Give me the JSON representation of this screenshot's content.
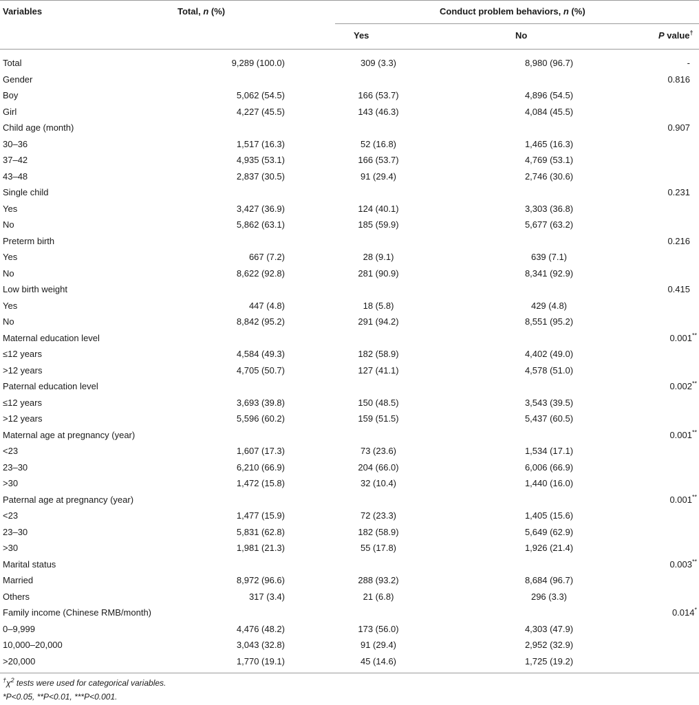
{
  "header": {
    "variables": "Variables",
    "total_pre": "Total, ",
    "total_n": "n",
    "total_post": " (%)",
    "cpb_pre": "Conduct problem behaviors, ",
    "cpb_n": "n",
    "cpb_post": " (%)",
    "yes": "Yes",
    "no": "No",
    "p_pre": "P",
    "p_post": " value",
    "p_mark": "†"
  },
  "rows": [
    {
      "label": "Total",
      "total": "9,289 (100.0)",
      "yes": "309 (3.3)",
      "no": "8,980 (96.7)",
      "p": "-",
      "p_mark": ""
    },
    {
      "label": "Gender",
      "total": "",
      "yes": "",
      "no": "",
      "p": "0.816",
      "p_mark": ""
    },
    {
      "label": "Boy",
      "total": "5,062 (54.5)",
      "yes": "166 (53.7)",
      "no": "4,896 (54.5)",
      "p": "",
      "p_mark": ""
    },
    {
      "label": "Girl",
      "total": "4,227 (45.5)",
      "yes": "143 (46.3)",
      "no": "4,084 (45.5)",
      "p": "",
      "p_mark": ""
    },
    {
      "label": "Child age (month)",
      "total": "",
      "yes": "",
      "no": "",
      "p": "0.907",
      "p_mark": ""
    },
    {
      "label": "30–36",
      "total": "1,517 (16.3)",
      "yes": "52 (16.8)",
      "no": "1,465 (16.3)",
      "p": "",
      "p_mark": ""
    },
    {
      "label": "37–42",
      "total": "4,935 (53.1)",
      "yes": "166 (53.7)",
      "no": "4,769 (53.1)",
      "p": "",
      "p_mark": ""
    },
    {
      "label": "43–48",
      "total": "2,837 (30.5)",
      "yes": "91 (29.4)",
      "no": "2,746 (30.6)",
      "p": "",
      "p_mark": ""
    },
    {
      "label": "Single child",
      "total": "",
      "yes": "",
      "no": "",
      "p": "0.231",
      "p_mark": ""
    },
    {
      "label": "Yes",
      "total": "3,427 (36.9)",
      "yes": "124 (40.1)",
      "no": "3,303 (36.8)",
      "p": "",
      "p_mark": ""
    },
    {
      "label": "No",
      "total": "5,862 (63.1)",
      "yes": "185 (59.9)",
      "no": "5,677 (63.2)",
      "p": "",
      "p_mark": ""
    },
    {
      "label": "Preterm birth",
      "total": "",
      "yes": "",
      "no": "",
      "p": "0.216",
      "p_mark": ""
    },
    {
      "label": "Yes",
      "total": "667 (7.2)",
      "yes": "28 (9.1)",
      "no": "639 (7.1)",
      "p": "",
      "p_mark": ""
    },
    {
      "label": "No",
      "total": "8,622 (92.8)",
      "yes": "281 (90.9)",
      "no": "8,341 (92.9)",
      "p": "",
      "p_mark": ""
    },
    {
      "label": "Low birth weight",
      "total": "",
      "yes": "",
      "no": "",
      "p": "0.415",
      "p_mark": ""
    },
    {
      "label": "Yes",
      "total": "447 (4.8)",
      "yes": "18 (5.8)",
      "no": "429 (4.8)",
      "p": "",
      "p_mark": ""
    },
    {
      "label": "No",
      "total": "8,842 (95.2)",
      "yes": "291 (94.2)",
      "no": "8,551 (95.2)",
      "p": "",
      "p_mark": ""
    },
    {
      "label": "Maternal education level",
      "total": "",
      "yes": "",
      "no": "",
      "p": "0.001",
      "p_mark": "**"
    },
    {
      "label": "≤12 years",
      "total": "4,584 (49.3)",
      "yes": "182 (58.9)",
      "no": "4,402 (49.0)",
      "p": "",
      "p_mark": ""
    },
    {
      "label": ">12 years",
      "total": "4,705 (50.7)",
      "yes": "127 (41.1)",
      "no": "4,578 (51.0)",
      "p": "",
      "p_mark": ""
    },
    {
      "label": "Paternal education level",
      "total": "",
      "yes": "",
      "no": "",
      "p": "0.002",
      "p_mark": "**"
    },
    {
      "label": "≤12 years",
      "total": "3,693 (39.8)",
      "yes": "150 (48.5)",
      "no": "3,543 (39.5)",
      "p": "",
      "p_mark": ""
    },
    {
      "label": ">12 years",
      "total": "5,596 (60.2)",
      "yes": "159 (51.5)",
      "no": "5,437 (60.5)",
      "p": "",
      "p_mark": ""
    },
    {
      "label": "Maternal age at pregnancy (year)",
      "total": "",
      "yes": "",
      "no": "",
      "p": "0.001",
      "p_mark": "**"
    },
    {
      "label": "<23",
      "total": "1,607 (17.3)",
      "yes": "73 (23.6)",
      "no": "1,534 (17.1)",
      "p": "",
      "p_mark": ""
    },
    {
      "label": "23–30",
      "total": "6,210 (66.9)",
      "yes": "204 (66.0)",
      "no": "6,006 (66.9)",
      "p": "",
      "p_mark": ""
    },
    {
      "label": ">30",
      "total": "1,472 (15.8)",
      "yes": "32 (10.4)",
      "no": "1,440 (16.0)",
      "p": "",
      "p_mark": ""
    },
    {
      "label": "Paternal age at pregnancy (year)",
      "total": "",
      "yes": "",
      "no": "",
      "p": "0.001",
      "p_mark": "**"
    },
    {
      "label": "<23",
      "total": "1,477 (15.9)",
      "yes": "72 (23.3)",
      "no": "1,405 (15.6)",
      "p": "",
      "p_mark": ""
    },
    {
      "label": "23–30",
      "total": "5,831 (62.8)",
      "yes": "182 (58.9)",
      "no": "5,649 (62.9)",
      "p": "",
      "p_mark": ""
    },
    {
      "label": ">30",
      "total": "1,981 (21.3)",
      "yes": "55 (17.8)",
      "no": "1,926 (21.4)",
      "p": "",
      "p_mark": ""
    },
    {
      "label": "Marital status",
      "total": "",
      "yes": "",
      "no": "",
      "p": "0.003",
      "p_mark": "**"
    },
    {
      "label": "Married",
      "total": "8,972 (96.6)",
      "yes": "288 (93.2)",
      "no": "8,684 (96.7)",
      "p": "",
      "p_mark": ""
    },
    {
      "label": "Others",
      "total": "317 (3.4)",
      "yes": "21 (6.8)",
      "no": "296 (3.3)",
      "p": "",
      "p_mark": ""
    },
    {
      "label": "Family income (Chinese RMB/month)",
      "total": "",
      "yes": "",
      "no": "",
      "p": "0.014",
      "p_mark": "*"
    },
    {
      "label": "0–9,999",
      "total": "4,476 (48.2)",
      "yes": "173 (56.0)",
      "no": "4,303 (47.9)",
      "p": "",
      "p_mark": ""
    },
    {
      "label": "10,000–20,000",
      "total": "3,043 (32.8)",
      "yes": "91 (29.4)",
      "no": "2,952 (32.9)",
      "p": "",
      "p_mark": ""
    },
    {
      "label": ">20,000",
      "total": "1,770 (19.1)",
      "yes": "45 (14.6)",
      "no": "1,725 (19.2)",
      "p": "",
      "p_mark": ""
    }
  ],
  "footnotes": {
    "line1_mark": "†",
    "line1_chi": "χ",
    "line1_sq": "2",
    "line1_text": " tests were used for categorical variables.",
    "line2": "*P<0.05, **P<0.01, ***P<0.001."
  }
}
